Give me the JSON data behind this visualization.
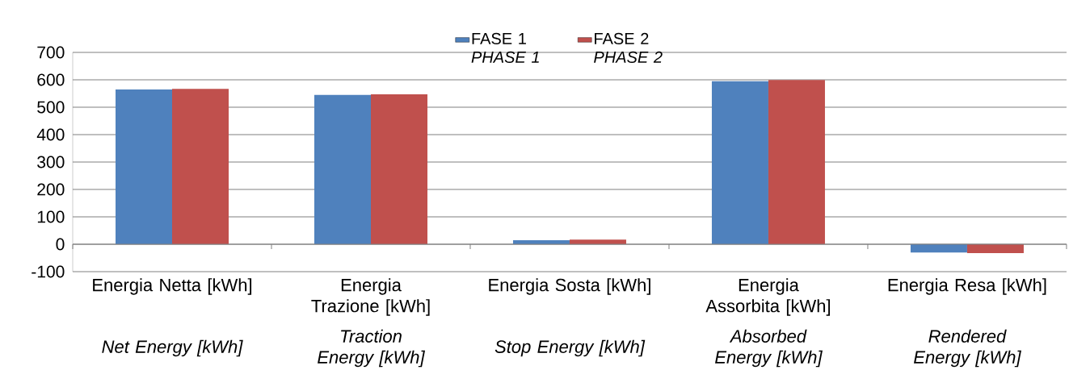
{
  "chart_data": {
    "type": "bar",
    "categories": [
      "Energia Netta [kWh]",
      "Energia Trazione [kWh]",
      "Energia Sosta [kWh]",
      "Energia Assorbita [kWh]",
      "Energia Resa [kWh]"
    ],
    "series": [
      {
        "name": "FASE 1 *PHASE 1*",
        "color": "#4f81bd",
        "values": [
          565,
          545,
          15,
          595,
          -30
        ]
      },
      {
        "name": "FASE 2 *PHASE 2*",
        "color": "#c0504d",
        "values": [
          567,
          547,
          17,
          599,
          -32
        ]
      }
    ],
    "ylim": [
      -100,
      700
    ],
    "yticks": [
      -100,
      0,
      100,
      200,
      300,
      400,
      500,
      600,
      700
    ],
    "grid": "y",
    "legend": "top",
    "annotations": [
      "Net Energy [kWh]",
      "Traction Energy [kWh]",
      "Stop Energy [kWh]",
      "Absorbed Energy [kWh]",
      "Rendered Energy [kWh]"
    ]
  }
}
